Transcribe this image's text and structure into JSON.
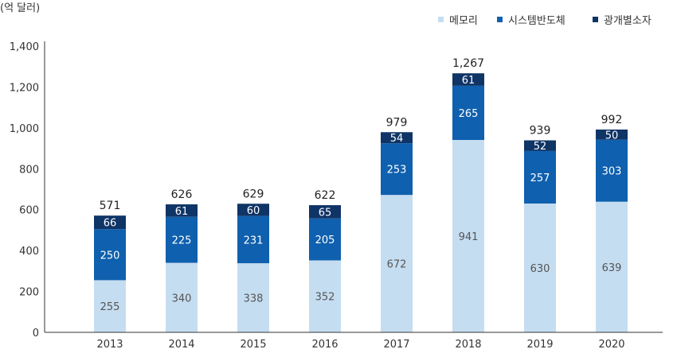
{
  "chart_data": {
    "type": "bar",
    "stacked": true,
    "unit_label": "(억 달러)",
    "categories": [
      "2013",
      "2014",
      "2015",
      "2016",
      "2017",
      "2018",
      "2019",
      "2020"
    ],
    "series": [
      {
        "name": "메모리",
        "color": "#c5ddf1",
        "label_color": "#555555",
        "values": [
          255,
          340,
          338,
          352,
          672,
          941,
          630,
          639
        ]
      },
      {
        "name": "시스템반도체",
        "color": "#0f60ae",
        "label_color": "#ffffff",
        "values": [
          250,
          225,
          231,
          205,
          253,
          265,
          257,
          303
        ]
      },
      {
        "name": "광개별소자",
        "color": "#0f3466",
        "label_color": "#ffffff",
        "values": [
          66,
          61,
          60,
          65,
          54,
          61,
          52,
          50
        ]
      }
    ],
    "totals": [
      "571",
      "626",
      "629",
      "622",
      "979",
      "1,267",
      "939",
      "992"
    ],
    "y_ticks": [
      {
        "value": 0,
        "label": "0"
      },
      {
        "value": 200,
        "label": "200"
      },
      {
        "value": 400,
        "label": "400"
      },
      {
        "value": 600,
        "label": "600"
      },
      {
        "value": 800,
        "label": "800"
      },
      {
        "value": 1000,
        "label": "1,000"
      },
      {
        "value": 1200,
        "label": "1,200"
      },
      {
        "value": 1400,
        "label": "1,400"
      }
    ],
    "ylim": [
      0,
      1400
    ],
    "legend_position": "top-right",
    "grid": false
  }
}
